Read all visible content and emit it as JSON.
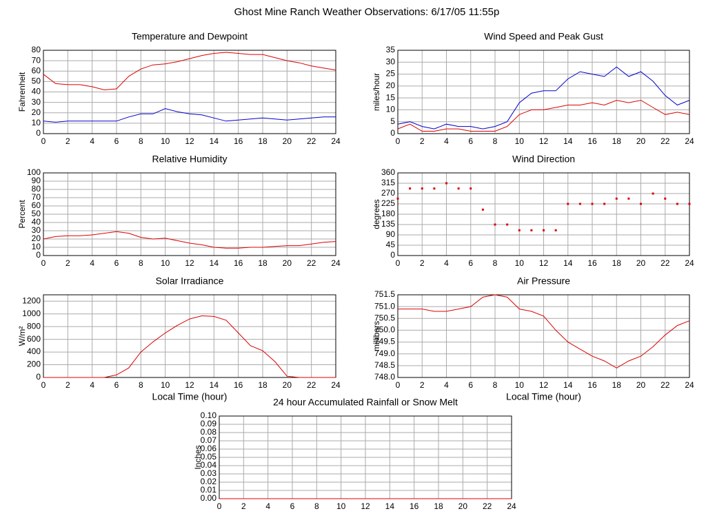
{
  "title": "Ghost Mine Ranch Weather Observations: 6/17/05 11:55p",
  "chart_data": [
    {
      "type": "line",
      "title": "Temperature and Dewpoint",
      "ylabel": "Fahrenheit",
      "x": [
        0,
        1,
        2,
        3,
        4,
        5,
        6,
        7,
        8,
        9,
        10,
        11,
        12,
        13,
        14,
        15,
        16,
        17,
        18,
        19,
        20,
        21,
        22,
        23,
        24
      ],
      "series": [
        {
          "color": "#dd0000",
          "values": [
            57,
            48,
            47,
            47,
            45,
            42,
            43,
            55,
            62,
            66,
            67,
            69,
            72,
            75,
            77,
            78,
            77,
            76,
            76,
            73,
            70,
            68,
            65,
            63,
            61
          ]
        },
        {
          "color": "#0000cc",
          "values": [
            12,
            11,
            12,
            12,
            12,
            12,
            12,
            16,
            19,
            19,
            24,
            21,
            19,
            18,
            15,
            12,
            13,
            14,
            15,
            14,
            13,
            14,
            15,
            16,
            16
          ]
        }
      ],
      "xlim": [
        0,
        24
      ],
      "xticks": [
        0,
        2,
        4,
        6,
        8,
        10,
        12,
        14,
        16,
        18,
        20,
        22,
        24
      ],
      "ylim": [
        0,
        80
      ],
      "yticks": [
        0,
        10,
        20,
        30,
        40,
        50,
        60,
        70,
        80
      ],
      "grid": true
    },
    {
      "type": "line",
      "title": "Wind Speed and Peak Gust",
      "ylabel": "miles/hour",
      "x": [
        0,
        1,
        2,
        3,
        4,
        5,
        6,
        7,
        8,
        9,
        10,
        11,
        12,
        13,
        14,
        15,
        16,
        17,
        18,
        19,
        20,
        21,
        22,
        23,
        24
      ],
      "series": [
        {
          "color": "#0000cc",
          "values": [
            4,
            5,
            3,
            2,
            4,
            3,
            3,
            2,
            3,
            5,
            13,
            17,
            18,
            18,
            23,
            26,
            25,
            24,
            28,
            24,
            26,
            22,
            16,
            12,
            14
          ]
        },
        {
          "color": "#dd0000",
          "values": [
            2,
            4,
            1,
            1,
            2,
            2,
            1,
            1,
            1,
            3,
            8,
            10,
            10,
            11,
            12,
            12,
            13,
            12,
            14,
            13,
            14,
            11,
            8,
            9,
            8
          ]
        }
      ],
      "xlim": [
        0,
        24
      ],
      "xticks": [
        0,
        2,
        4,
        6,
        8,
        10,
        12,
        14,
        16,
        18,
        20,
        22,
        24
      ],
      "ylim": [
        0,
        35
      ],
      "yticks": [
        0,
        5,
        10,
        15,
        20,
        25,
        30,
        35
      ],
      "grid": true
    },
    {
      "type": "line",
      "title": "Relative Humidity",
      "ylabel": "Percent",
      "x": [
        0,
        1,
        2,
        3,
        4,
        5,
        6,
        7,
        8,
        9,
        10,
        11,
        12,
        13,
        14,
        15,
        16,
        17,
        18,
        19,
        20,
        21,
        22,
        23,
        24
      ],
      "series": [
        {
          "color": "#dd0000",
          "values": [
            20,
            23,
            24,
            24,
            25,
            27,
            29,
            27,
            22,
            20,
            21,
            18,
            15,
            13,
            10,
            9,
            9,
            10,
            10,
            11,
            12,
            12,
            14,
            16,
            17
          ]
        }
      ],
      "xlim": [
        0,
        24
      ],
      "xticks": [
        0,
        2,
        4,
        6,
        8,
        10,
        12,
        14,
        16,
        18,
        20,
        22,
        24
      ],
      "ylim": [
        0,
        100
      ],
      "yticks": [
        0,
        10,
        20,
        30,
        40,
        50,
        60,
        70,
        80,
        90,
        100
      ],
      "grid": true
    },
    {
      "type": "scatter",
      "title": "Wind Direction",
      "ylabel": "degrees",
      "x": [
        0,
        1,
        2,
        3,
        4,
        5,
        6,
        7,
        8,
        9,
        10,
        11,
        12,
        13,
        14,
        15,
        16,
        17,
        18,
        19,
        20,
        21,
        22,
        23,
        24
      ],
      "series": [
        {
          "color": "#dd0000",
          "values": [
            248,
            292,
            292,
            292,
            315,
            292,
            292,
            200,
            135,
            135,
            110,
            110,
            110,
            110,
            225,
            225,
            225,
            225,
            248,
            248,
            225,
            270,
            248,
            225,
            225
          ]
        }
      ],
      "xlim": [
        0,
        24
      ],
      "xticks": [
        0,
        2,
        4,
        6,
        8,
        10,
        12,
        14,
        16,
        18,
        20,
        22,
        24
      ],
      "ylim": [
        0,
        360
      ],
      "yticks": [
        0,
        45,
        90,
        135,
        180,
        225,
        270,
        315,
        360
      ],
      "grid": true
    },
    {
      "type": "line",
      "title": "Solar Irradiance",
      "ylabel": "W/m²",
      "xlabel": "Local Time (hour)",
      "x": [
        0,
        1,
        2,
        3,
        4,
        5,
        6,
        7,
        8,
        9,
        10,
        11,
        12,
        13,
        14,
        15,
        16,
        17,
        18,
        19,
        20,
        21,
        22,
        23,
        24
      ],
      "series": [
        {
          "color": "#dd0000",
          "values": [
            0,
            0,
            0,
            0,
            0,
            0,
            40,
            150,
            400,
            560,
            700,
            820,
            920,
            970,
            960,
            900,
            700,
            500,
            420,
            250,
            20,
            0,
            0,
            0,
            0
          ]
        }
      ],
      "xlim": [
        0,
        24
      ],
      "xticks": [
        0,
        2,
        4,
        6,
        8,
        10,
        12,
        14,
        16,
        18,
        20,
        22,
        24
      ],
      "ylim": [
        0,
        1300
      ],
      "yticks": [
        0,
        200,
        400,
        600,
        800,
        1000,
        1200
      ],
      "grid": true
    },
    {
      "type": "line",
      "title": "Air Pressure",
      "ylabel": "millibars",
      "xlabel": "Local Time (hour)",
      "x": [
        0,
        1,
        2,
        3,
        4,
        5,
        6,
        7,
        8,
        9,
        10,
        11,
        12,
        13,
        14,
        15,
        16,
        17,
        18,
        19,
        20,
        21,
        22,
        23,
        24
      ],
      "series": [
        {
          "color": "#dd0000",
          "values": [
            750.9,
            750.9,
            750.9,
            750.8,
            750.8,
            750.9,
            751.0,
            751.4,
            751.5,
            751.4,
            750.9,
            750.8,
            750.6,
            750.0,
            749.5,
            749.2,
            748.9,
            748.7,
            748.4,
            748.7,
            748.9,
            749.3,
            749.8,
            750.2,
            750.4
          ]
        }
      ],
      "xlim": [
        0,
        24
      ],
      "xticks": [
        0,
        2,
        4,
        6,
        8,
        10,
        12,
        14,
        16,
        18,
        20,
        22,
        24
      ],
      "ylim": [
        748,
        751.5
      ],
      "yticks": [
        {
          "value": 748,
          "label": "748.0"
        },
        {
          "value": 748.5,
          "label": "748.5"
        },
        {
          "value": 749,
          "label": "749.0"
        },
        {
          "value": 749.5,
          "label": "749.5"
        },
        {
          "value": 750,
          "label": "750.0"
        },
        {
          "value": 750.5,
          "label": "750.5"
        },
        {
          "value": 751,
          "label": "751.0"
        },
        {
          "value": 751.5,
          "label": "751.5"
        }
      ],
      "grid": true
    },
    {
      "type": "line",
      "title": "24 hour Accumulated Rainfall or Snow Melt",
      "ylabel": "Inches",
      "x": [
        0,
        1,
        2,
        3,
        4,
        5,
        6,
        7,
        8,
        9,
        10,
        11,
        12,
        13,
        14,
        15,
        16,
        17,
        18,
        19,
        20,
        21,
        22,
        23,
        24
      ],
      "series": [
        {
          "color": "#dd0000",
          "values": [
            0,
            0,
            0,
            0,
            0,
            0,
            0,
            0,
            0,
            0,
            0,
            0,
            0,
            0,
            0,
            0,
            0,
            0,
            0,
            0,
            0,
            0,
            0,
            0,
            0
          ]
        }
      ],
      "xlim": [
        0,
        24
      ],
      "xticks": [
        0,
        2,
        4,
        6,
        8,
        10,
        12,
        14,
        16,
        18,
        20,
        22,
        24
      ],
      "ylim": [
        0,
        0.1
      ],
      "yticks": [
        {
          "value": 0,
          "label": "0.00"
        },
        {
          "value": 0.01,
          "label": "0.01"
        },
        {
          "value": 0.02,
          "label": "0.02"
        },
        {
          "value": 0.03,
          "label": "0.03"
        },
        {
          "value": 0.04,
          "label": "0.04"
        },
        {
          "value": 0.05,
          "label": "0.05"
        },
        {
          "value": 0.06,
          "label": "0.06"
        },
        {
          "value": 0.07,
          "label": "0.07"
        },
        {
          "value": 0.08,
          "label": "0.08"
        },
        {
          "value": 0.09,
          "label": "0.09"
        },
        {
          "value": 0.1,
          "label": "0.10"
        }
      ],
      "grid": true
    }
  ]
}
